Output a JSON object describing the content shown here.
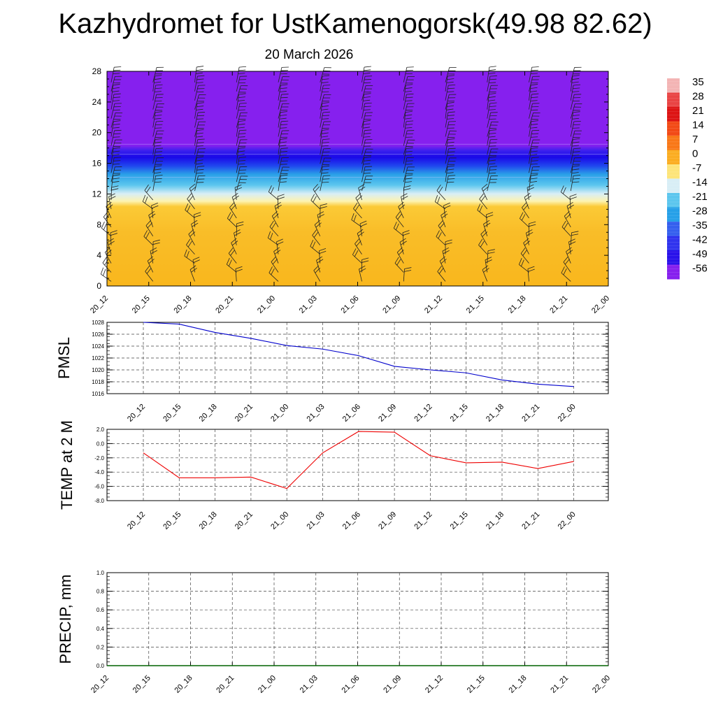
{
  "title": "Kazhydromet for UstKamenogorsk(49.98 82.62)",
  "subtitle": "20 March 2026",
  "chart_data": [
    {
      "type": "heatmap",
      "name": "cross-section",
      "description": "Temperature height-time cross section with wind barbs",
      "x_ticks": [
        "20_12",
        "20_15",
        "20_18",
        "20_21",
        "21_00",
        "21_03",
        "21_06",
        "21_09",
        "21_12",
        "21_15",
        "21_18",
        "21_21",
        "22_00"
      ],
      "y_ticks": [
        0,
        4,
        8,
        12,
        16,
        20,
        24,
        28
      ],
      "ylim": [
        0,
        28
      ],
      "layers": [
        {
          "from": 0,
          "to": 11,
          "value": "~ -7 to 0",
          "color": "#f9b71d"
        },
        {
          "from": 11,
          "to": 12,
          "value": "-14",
          "color": "#fdf3b0"
        },
        {
          "from": 12,
          "to": 15,
          "value": "-21 to -35",
          "color": "#4ab4e6"
        },
        {
          "from": 15,
          "to": 18,
          "value": "-49",
          "color": "#1f10ee"
        },
        {
          "from": 18,
          "to": 28,
          "value": "-56",
          "color": "#8620ee"
        }
      ],
      "colorbar": {
        "labels": [
          "35",
          "28",
          "21",
          "14",
          "7",
          "0",
          "-7",
          "-14",
          "-21",
          "-28",
          "-35",
          "-42",
          "-49",
          "-56"
        ],
        "colors": [
          "#f3b4b4",
          "#e94444",
          "#dd1414",
          "#f24a16",
          "#f97818",
          "#fbad22",
          "#fde47a",
          "#d8eef6",
          "#5cc6ee",
          "#26a0e8",
          "#3560ee",
          "#3034ee",
          "#2a12ea",
          "#8620ee"
        ]
      }
    },
    {
      "type": "line",
      "name": "pmsl",
      "ylabel": "PMSL",
      "x": [
        "20_12",
        "20_15",
        "20_18",
        "20_21",
        "21_00",
        "21_03",
        "21_06",
        "21_09",
        "21_12",
        "21_15",
        "21_18",
        "21_21",
        "22_00"
      ],
      "values": [
        1028.0,
        1027.7,
        1026.3,
        1025.3,
        1024.1,
        1023.5,
        1022.4,
        1020.6,
        1020.0,
        1019.5,
        1018.3,
        1017.6,
        1017.2
      ],
      "y_ticks": [
        "1016",
        "1018",
        "1020",
        "1022",
        "1024",
        "1026",
        "1028"
      ],
      "ylim": [
        1016,
        1028
      ],
      "color": "#0000cc"
    },
    {
      "type": "line",
      "name": "temp2m",
      "ylabel": "TEMP at 2 M",
      "x": [
        "20_12",
        "20_15",
        "20_18",
        "20_21",
        "21_00",
        "21_03",
        "21_06",
        "21_09",
        "21_12",
        "21_15",
        "21_18",
        "21_21",
        "22_00"
      ],
      "values": [
        -1.3,
        -4.8,
        -4.8,
        -4.7,
        -6.3,
        -1.3,
        1.7,
        1.6,
        -1.7,
        -2.7,
        -2.6,
        -3.5,
        -2.5
      ],
      "y_ticks": [
        "-8.0",
        "-6.0",
        "-4.0",
        "-2.0",
        "0.0",
        "2.0"
      ],
      "ylim": [
        -8,
        2
      ],
      "color": "#ee0000"
    },
    {
      "type": "line",
      "name": "precip",
      "ylabel": "PRECIP, mm",
      "x": [
        "20_12",
        "20_15",
        "20_18",
        "20_21",
        "21_00",
        "21_03",
        "21_06",
        "21_09",
        "21_12",
        "21_15",
        "21_18",
        "21_21",
        "22_00"
      ],
      "values": [
        0,
        0,
        0,
        0,
        0,
        0,
        0,
        0,
        0,
        0,
        0,
        0,
        0
      ],
      "y_ticks": [
        "0.0",
        "0.2",
        "0.4",
        "0.6",
        "0.8",
        "1.0"
      ],
      "ylim": [
        0,
        1
      ],
      "color": "#006400"
    }
  ]
}
